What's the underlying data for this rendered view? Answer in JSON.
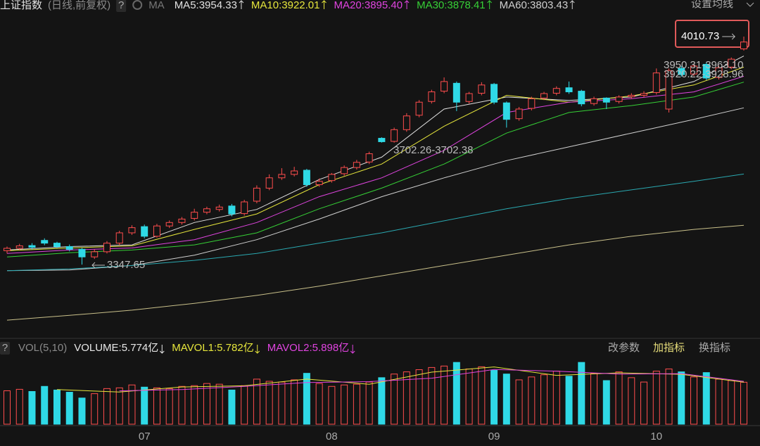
{
  "chart_data": [
    {
      "type": "candlestick",
      "title": "上证指数",
      "subtitle": "(日线,前复权)",
      "help": "?",
      "ma_label": "MA",
      "settings": "设置均线",
      "categories": [
        null,
        null,
        null,
        null,
        null,
        null,
        null,
        null,
        null,
        null,
        null,
        "07",
        null,
        null,
        null,
        null,
        null,
        null,
        null,
        null,
        null,
        null,
        null,
        null,
        null,
        null,
        "08",
        null,
        null,
        null,
        null,
        null,
        null,
        null,
        null,
        null,
        null,
        null,
        null,
        "09",
        null,
        null,
        null,
        null,
        null,
        null,
        null,
        null,
        null,
        null,
        null,
        null,
        "10",
        null,
        null,
        null,
        null,
        null,
        null,
        null
      ],
      "open": [
        3388,
        3395,
        3403,
        3418,
        3410,
        3400,
        3392,
        3370,
        3385,
        3410,
        3440,
        3458,
        3430,
        3460,
        3470,
        3482,
        3500,
        3508,
        3518,
        3496,
        3532,
        3570,
        3600,
        3610,
        3622,
        3580,
        3592,
        3612,
        3630,
        3646,
        3715,
        3706,
        3740,
        3782,
        3822,
        3852,
        3875,
        3822,
        3846,
        3872,
        3818,
        3772,
        3802,
        3832,
        3846,
        3862,
        3852,
        3816,
        3832,
        3822,
        3836,
        3840,
        3848,
        3800,
        3918,
        3902,
        3930,
        3892,
        3922,
        3975
      ],
      "high": [
        3400,
        3408,
        3410,
        3424,
        3414,
        3406,
        3396,
        3392,
        3416,
        3446,
        3462,
        3464,
        3466,
        3476,
        3486,
        3510,
        3516,
        3522,
        3524,
        3536,
        3578,
        3610,
        3628,
        3632,
        3626,
        3598,
        3614,
        3636,
        3652,
        3676,
        3718,
        3746,
        3788,
        3826,
        3856,
        3892,
        3880,
        3850,
        3878,
        3876,
        3822,
        3806,
        3836,
        3850,
        3866,
        3880,
        3856,
        3836,
        3834,
        3840,
        3846,
        3852,
        3918,
        3918,
        3925,
        3932,
        3934,
        3926,
        3950,
        4010.73
      ],
      "low": [
        3380,
        3390,
        3392,
        3404,
        3396,
        3386,
        3347.65,
        3364,
        3380,
        3404,
        3434,
        3424,
        3426,
        3454,
        3464,
        3476,
        3494,
        3502,
        3488,
        3490,
        3526,
        3564,
        3594,
        3604,
        3574,
        3574,
        3586,
        3606,
        3624,
        3640,
        3702.26,
        3702.38,
        3734,
        3776,
        3816,
        3846,
        3794,
        3816,
        3840,
        3814,
        3746,
        3766,
        3796,
        3826,
        3840,
        3844,
        3808,
        3810,
        3800,
        3816,
        3830,
        3834,
        3842,
        3790,
        3894,
        3896,
        3884,
        3886,
        3916,
        3970
      ],
      "close": [
        3395,
        3402,
        3398,
        3410,
        3400,
        3392,
        3370,
        3385,
        3410,
        3440,
        3455,
        3430,
        3460,
        3470,
        3480,
        3500,
        3510,
        3515,
        3495,
        3530,
        3570,
        3600,
        3610,
        3620,
        3580,
        3590,
        3610,
        3630,
        3645,
        3670,
        3705,
        3740,
        3780,
        3820,
        3850,
        3880,
        3820,
        3845,
        3870,
        3820,
        3770,
        3800,
        3830,
        3845,
        3860,
        3850,
        3815,
        3830,
        3820,
        3835,
        3840,
        3845,
        3905,
        3912,
        3900,
        3925,
        3890,
        3920,
        3945,
        3995
      ],
      "up_color": "#ff4d4d",
      "down_color": "#2fd9e6",
      "ylim": [
        3176,
        4066
      ],
      "ma_series": [
        {
          "name": "MA5:3954.33",
          "color": "#e0e0e0",
          "x": [
            0,
            5,
            10,
            15,
            20,
            25,
            30,
            35,
            40,
            45,
            50,
            55,
            59
          ],
          "values": [
            3390,
            3400,
            3405,
            3470,
            3508,
            3595,
            3660,
            3800,
            3835,
            3825,
            3835,
            3880,
            3954.33
          ]
        },
        {
          "name": "MA10:3922.01",
          "color": "#e6e63c",
          "x": [
            0,
            5,
            10,
            15,
            20,
            25,
            30,
            35,
            40,
            45,
            50,
            55,
            59
          ],
          "values": [
            3388,
            3396,
            3402,
            3450,
            3495,
            3580,
            3640,
            3750,
            3840,
            3820,
            3838,
            3870,
            3922.01
          ]
        },
        {
          "name": "MA20:3895.40",
          "color": "#e044e0",
          "x": [
            0,
            5,
            10,
            15,
            20,
            25,
            30,
            35,
            40,
            45,
            50,
            55,
            59
          ],
          "values": [
            3380,
            3390,
            3396,
            3420,
            3470,
            3545,
            3600,
            3680,
            3790,
            3820,
            3830,
            3850,
            3895.4
          ]
        },
        {
          "name": "MA30:3878.41",
          "color": "#36d036",
          "x": [
            0,
            5,
            10,
            15,
            20,
            25,
            30,
            35,
            40,
            45,
            50,
            55,
            59
          ],
          "values": [
            3370,
            3382,
            3390,
            3405,
            3440,
            3510,
            3570,
            3640,
            3730,
            3790,
            3810,
            3835,
            3878.41
          ]
        },
        {
          "name": "MA60:3803.43",
          "color": "#cfcfcf",
          "x": [
            0,
            5,
            10,
            15,
            20,
            25,
            30,
            35,
            40,
            45,
            50,
            55,
            59
          ],
          "values": [
            3330,
            3332,
            3345,
            3375,
            3420,
            3480,
            3545,
            3600,
            3650,
            3690,
            3730,
            3770,
            3803.43
          ]
        },
        {
          "color": "#2aa8b0",
          "x": [
            0,
            5,
            10,
            15,
            20,
            25,
            30,
            35,
            40,
            45,
            50,
            55,
            59
          ],
          "values": [
            3330,
            3335,
            3345,
            3360,
            3380,
            3410,
            3440,
            3475,
            3510,
            3540,
            3565,
            3590,
            3611
          ]
        },
        {
          "color": "#c9c08a",
          "x": [
            0,
            5,
            10,
            15,
            20,
            25,
            30,
            35,
            40,
            45,
            50,
            55,
            59
          ],
          "values": [
            3186,
            3200,
            3215,
            3235,
            3258,
            3285,
            3315,
            3345,
            3375,
            3405,
            3430,
            3450,
            3462
          ]
        }
      ],
      "annotations": [
        "3347.65",
        "3702.26-3702.38",
        "3950.31-3963.10",
        "3920.22-3928.96",
        "4010.73"
      ]
    },
    {
      "type": "bar",
      "title": "VOL(5,10)",
      "help": "?",
      "buttons": [
        "改参数",
        "加指标",
        "换指标"
      ],
      "ylim": [
        0,
        9
      ],
      "series": [
        {
          "name": "VOLUME:5.774亿",
          "color": "#e8e8e8",
          "values": [
            4.6,
            4.8,
            4.5,
            5.2,
            4.7,
            4.4,
            3.6,
            4.2,
            4.9,
            5.0,
            5.4,
            5.1,
            5.0,
            4.9,
            5.2,
            5.3,
            5.6,
            5.5,
            4.7,
            5.3,
            6.2,
            5.9,
            5.8,
            6.1,
            7.0,
            5.6,
            5.2,
            5.4,
            5.5,
            5.8,
            6.4,
            6.9,
            7.2,
            7.5,
            7.8,
            8.0,
            8.5,
            7.6,
            7.9,
            7.4,
            6.9,
            6.1,
            6.5,
            6.8,
            7.3,
            6.6,
            8.5,
            7.0,
            6.0,
            7.2,
            6.4,
            5.8,
            7.3,
            7.6,
            7.2,
            6.5,
            7.1,
            6.2,
            6.0,
            5.774
          ]
        }
      ],
      "lines": [
        {
          "name": "MAVOL1:5.782亿",
          "color": "#e6e63c",
          "x": [
            4,
            9,
            14,
            19,
            24,
            29,
            34,
            39,
            44,
            49,
            54,
            59
          ],
          "values": [
            4.76,
            4.42,
            5.12,
            5.28,
            6.2,
            5.5,
            7.16,
            7.88,
            6.72,
            7.06,
            6.86,
            5.782
          ]
        },
        {
          "name": "MAVOL2:5.898亿",
          "color": "#e044e0",
          "x": [
            9,
            14,
            19,
            24,
            29,
            34,
            39,
            44,
            49,
            54,
            59
          ],
          "values": [
            4.59,
            4.77,
            5.2,
            5.74,
            5.85,
            6.33,
            7.52,
            7.3,
            6.89,
            6.96,
            5.898
          ]
        }
      ]
    }
  ]
}
